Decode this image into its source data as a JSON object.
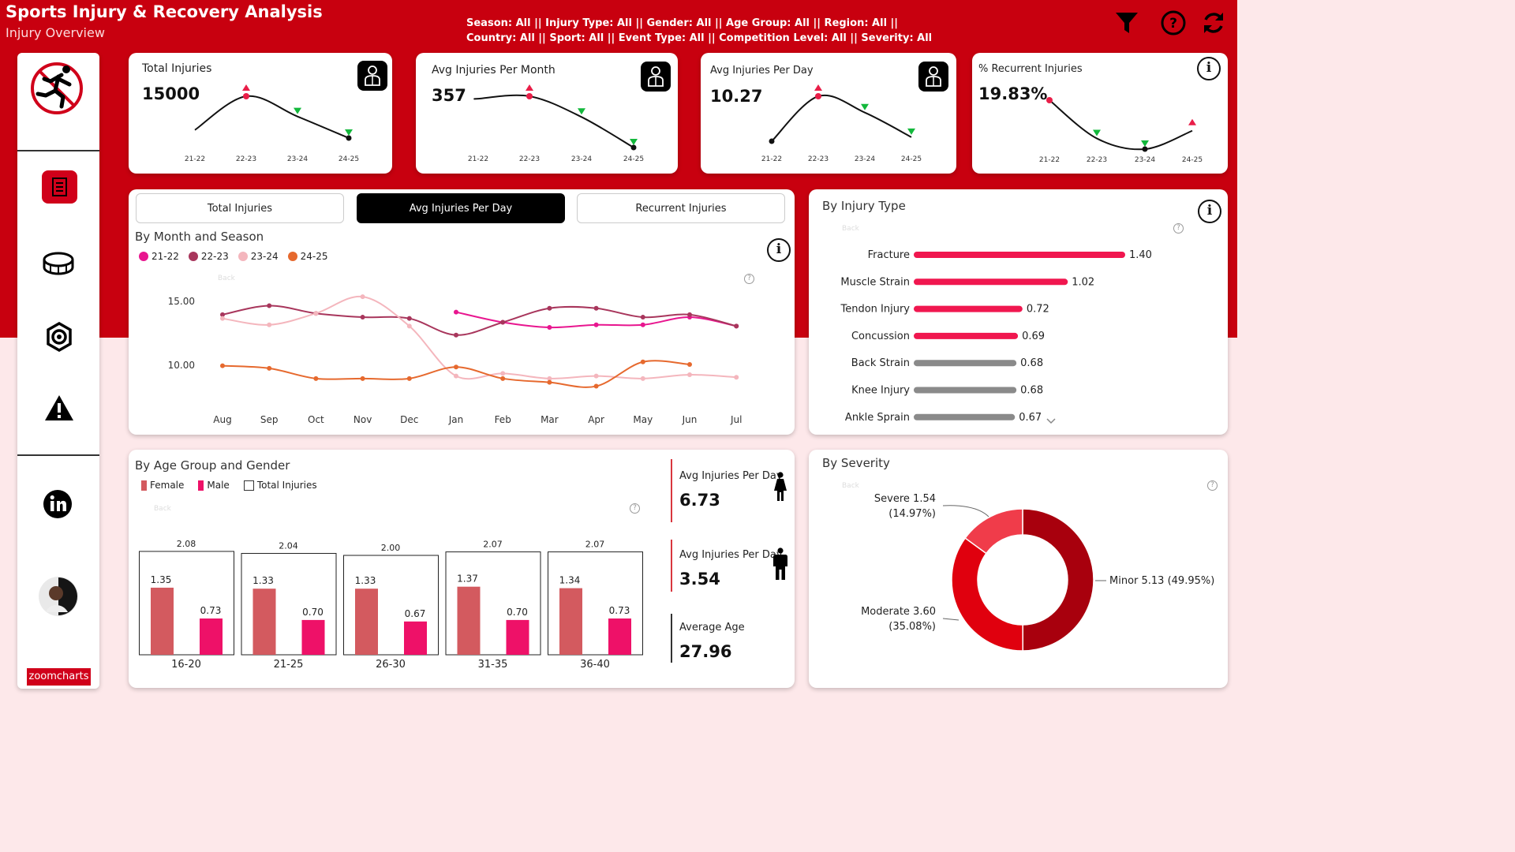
{
  "header": {
    "title": "Sports Injury & Recovery Analysis",
    "subtitle": "Injury Overview",
    "filters_line1": "Season: All || Injury Type: All || Gender: All || Age Group: All || Region: All ||",
    "filters_line2": "Country: All || Sport: All || Event Type: All || Competition Level: All || Severity: All"
  },
  "sidebar": {
    "brand_label": "zoomcharts",
    "items": [
      "runner-logo",
      "injury-report-icon",
      "stadium-icon",
      "gear-icon",
      "warning-icon",
      "linkedin-icon",
      "avatar"
    ]
  },
  "kpis": [
    {
      "label": "Total Injuries",
      "value": "15000",
      "trend": [
        130,
        155,
        140,
        124
      ]
    },
    {
      "label": "Avg Injuries Per Month",
      "value": "357",
      "trend": [
        103,
        105,
        88,
        63
      ]
    },
    {
      "label": "Avg Injuries Per Day",
      "value": "10.27",
      "trend": [
        8.1,
        9.2,
        8.8,
        8.2
      ]
    },
    {
      "label": "% Recurrent Injuries",
      "value": "19.83%",
      "trend": [
        21.5,
        19.0,
        18.3,
        19.5
      ]
    }
  ],
  "kpi_seasons": [
    "21-22",
    "22-23",
    "23-24",
    "24-25"
  ],
  "tabs": [
    "Total Injuries",
    "Avg Injuries Per Day",
    "Recurrent Injuries"
  ],
  "month_chart": {
    "title": "By Month and Season",
    "back_label": "Back",
    "chart_data": {
      "type": "line",
      "categories": [
        "Aug",
        "Sep",
        "Oct",
        "Nov",
        "Dec",
        "Jan",
        "Feb",
        "Mar",
        "Apr",
        "May",
        "Jun",
        "Jul"
      ],
      "series": [
        {
          "name": "21-22",
          "color": "#e8168f",
          "values": [
            null,
            null,
            null,
            null,
            null,
            14.1,
            13.3,
            12.9,
            13.1,
            13.1,
            13.7,
            13.0
          ]
        },
        {
          "name": "22-23",
          "color": "#a8365c",
          "values": [
            13.9,
            14.6,
            14.0,
            13.7,
            13.6,
            12.3,
            13.3,
            14.4,
            14.4,
            13.7,
            13.9,
            13.0
          ]
        },
        {
          "name": "23-24",
          "color": "#f4b6bd",
          "values": [
            13.6,
            13.1,
            14.0,
            15.3,
            13.0,
            9.1,
            9.3,
            8.9,
            9.1,
            8.9,
            9.2,
            9.0
          ]
        },
        {
          "name": "24-25",
          "color": "#e6692e",
          "values": [
            9.9,
            9.7,
            8.9,
            8.9,
            8.9,
            9.8,
            8.9,
            8.6,
            8.3,
            10.2,
            10.0,
            null
          ]
        }
      ],
      "yticks": [
        "15.00",
        "10.00"
      ],
      "ylim": [
        6,
        17
      ]
    }
  },
  "injury_type": {
    "title": "By Injury Type",
    "back_label": "Back",
    "chart_data": {
      "type": "bar",
      "categories": [
        "Fracture",
        "Muscle Strain",
        "Tendon Injury",
        "Concussion",
        "Back Strain",
        "Knee Injury",
        "Ankle Sprain"
      ],
      "values": [
        1.4,
        1.02,
        0.72,
        0.69,
        0.68,
        0.68,
        0.67
      ],
      "labels": [
        "1.40",
        "1.02",
        "0.72",
        "0.69",
        "0.68",
        "0.68",
        "0.67"
      ],
      "highlight_count": 4,
      "xlim": [
        0,
        1.4
      ]
    }
  },
  "age_gender": {
    "title": "By Age Group and Gender",
    "legend": [
      "Female",
      "Male",
      "Total Injuries"
    ],
    "back_label": "Back",
    "chart_data": {
      "type": "bar",
      "categories": [
        "16-20",
        "21-25",
        "26-30",
        "31-35",
        "36-40"
      ],
      "series": [
        {
          "name": "Female",
          "color": "#d35a5f",
          "values": [
            1.35,
            1.33,
            1.33,
            1.37,
            1.34
          ],
          "labels": [
            "1.35",
            "1.33",
            "1.33",
            "1.37",
            "1.34"
          ]
        },
        {
          "name": "Male",
          "color": "#ee1168",
          "values": [
            0.73,
            0.7,
            0.67,
            0.7,
            0.73
          ],
          "labels": [
            "0.73",
            "0.70",
            "0.67",
            "0.70",
            "0.73"
          ]
        },
        {
          "name": "Total Injuries",
          "values": [
            2.08,
            2.04,
            2.0,
            2.07,
            2.07
          ],
          "labels": [
            "2.08",
            "2.04",
            "2.00",
            "2.07",
            "2.07"
          ]
        }
      ],
      "ylim": [
        0,
        2.1
      ]
    }
  },
  "stats": [
    {
      "label": "Avg Injuries Per Day",
      "value": "6.73",
      "icon": "female-icon"
    },
    {
      "label": "Avg Injuries Per Day",
      "value": "3.54",
      "icon": "male-icon"
    },
    {
      "label": "Average Age",
      "value": "27.96"
    }
  ],
  "severity": {
    "title": "By Severity",
    "back_label": "Back",
    "chart_data": {
      "type": "pie",
      "labels": [
        "Minor",
        "Moderate",
        "Severe"
      ],
      "values": [
        5.13,
        3.6,
        1.54
      ],
      "percent": [
        "49.95%",
        "35.08%",
        "14.97%"
      ],
      "label_text": [
        "Minor 5.13 (49.95%)",
        "Moderate 3.60",
        "(35.08%)",
        "Severe 1.54",
        "(14.97%)"
      ],
      "colors": [
        "#a8000d",
        "#e0000e",
        "#f03c4a"
      ]
    }
  },
  "colors": {
    "brand": "#c8000f",
    "accent_pink": "#f0174f",
    "gray_bar": "#8a8a8a"
  }
}
